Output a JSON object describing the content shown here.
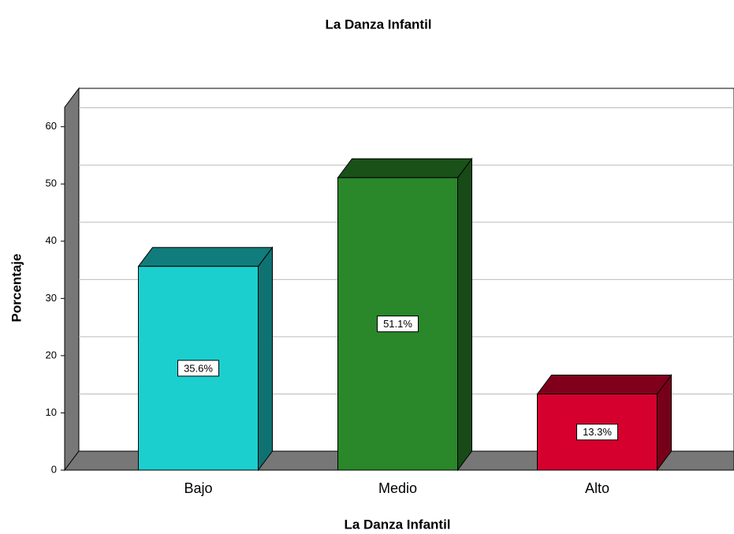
{
  "chart_data": {
    "type": "bar3d",
    "title": "La Danza Infantil",
    "x_label": "La Danza Infantil",
    "y_label": "Porcentaje",
    "categories": [
      "Bajo",
      "Medio",
      "Alto"
    ],
    "values": [
      35.6,
      51.1,
      13.3
    ],
    "value_labels": [
      "35.6%",
      "51.1%",
      "13.3%"
    ],
    "colors": [
      "#1ccfcf",
      "#2a872a",
      "#d6002e"
    ],
    "ylim": [
      0,
      63.4
    ],
    "yticks": [
      0,
      10,
      20,
      30,
      40,
      50,
      60
    ],
    "grid": true
  }
}
